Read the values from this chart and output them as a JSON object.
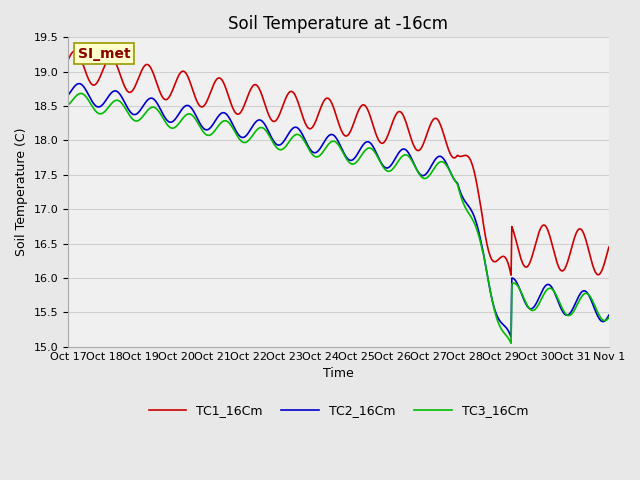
{
  "title": "Soil Temperature at -16cm",
  "xlabel": "Time",
  "ylabel": "Soil Temperature (C)",
  "ylim": [
    15.0,
    19.5
  ],
  "fig_facecolor": "#e8e8e8",
  "ax_facecolor": "#f0f0f0",
  "grid_color": "#d0d0d0",
  "line_colors": {
    "TC1": "#cc0000",
    "TC2": "#0000cc",
    "TC3": "#00bb00"
  },
  "legend_labels": [
    "TC1_16Cm",
    "TC2_16Cm",
    "TC3_16Cm"
  ],
  "annotation_text": "SI_met",
  "annotation_fg": "#880000",
  "annotation_bg": "#ffffcc",
  "annotation_border": "#999900",
  "x_tick_labels": [
    "Oct 17",
    "Oct 18",
    "Oct 19",
    "Oct 20",
    "Oct 21",
    "Oct 22",
    "Oct 23",
    "Oct 24",
    "Oct 25",
    "Oct 26",
    "Oct 27",
    "Oct 28",
    "Oct 29",
    "Oct 30",
    "Oct 31",
    "Nov 1"
  ],
  "n_days": 15,
  "spd": 48,
  "title_fontsize": 12,
  "label_fontsize": 9,
  "tick_fontsize": 8,
  "legend_fontsize": 9,
  "linewidth": 1.2
}
